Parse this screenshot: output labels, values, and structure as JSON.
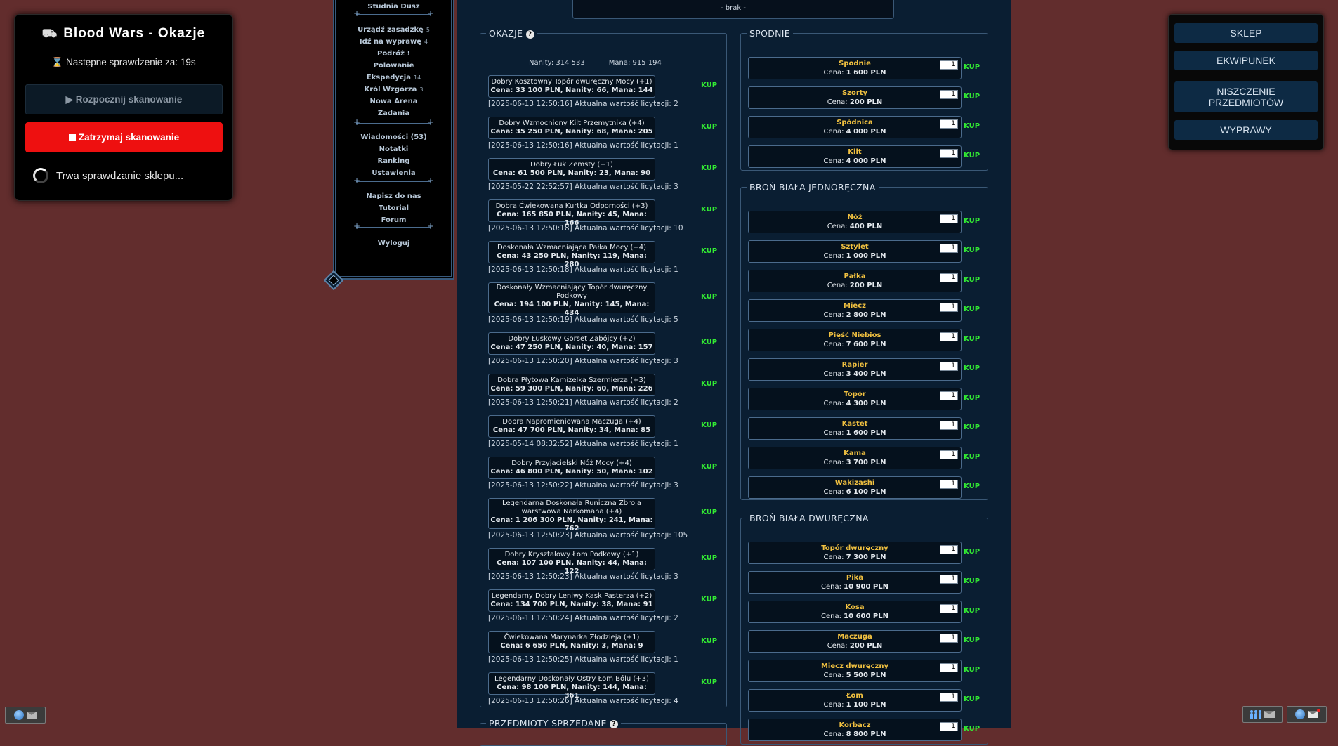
{
  "scanner": {
    "icon": "hand-cart-icon",
    "title": "Blood Wars - Okazje",
    "next_check": "⌛ Następne sprawdzenie za: 19s",
    "start_label": "▶ Rozpocznij skanowanie",
    "stop_label": "Zatrzymaj skanowanie",
    "status": "Trwa sprawdzanie sklepu..."
  },
  "menu": {
    "items": [
      {
        "label": "Studnia Dusz",
        "count": ""
      },
      {
        "label": "Urządź zasadzkę",
        "count": "5"
      },
      {
        "label": "Idź na wyprawę",
        "count": "4"
      },
      {
        "label": "Podróż !",
        "count": ""
      },
      {
        "label": "Polowanie",
        "count": ""
      },
      {
        "label": "Ekspedycja",
        "count": "14"
      },
      {
        "label": "Król Wzgórza",
        "count": "3"
      },
      {
        "label": "Nowa Arena",
        "count": ""
      },
      {
        "label": "Zadania",
        "count": ""
      },
      {
        "label": "Wiadomości (53)",
        "count": ""
      },
      {
        "label": "Notatki",
        "count": ""
      },
      {
        "label": "Ranking",
        "count": ""
      },
      {
        "label": "Ustawienia",
        "count": ""
      },
      {
        "label": "Napisz do nas",
        "count": ""
      },
      {
        "label": "Tutorial",
        "count": ""
      },
      {
        "label": "Forum",
        "count": ""
      },
      {
        "label": "Wyloguj",
        "count": ""
      }
    ]
  },
  "top_box": {
    "text": "- brak -"
  },
  "okazje": {
    "legend": "OKAZJE",
    "nanity": "Nanity: 314 533",
    "mana": "Mana: 915 194",
    "buy_label": "KUP",
    "offers": [
      {
        "name": "Dobry Kosztowny Topór dwuręczny Mocy (+1)",
        "price": "Cena: 33 100 PLN, Nanity: 66, Mana: 144",
        "time": "[2025-06-13 12:50:16] Aktualna wartość licytacji: 2"
      },
      {
        "name": "Dobry Wzmocniony Kilt Przemytnika (+4)",
        "price": "Cena: 35 250 PLN, Nanity: 68, Mana: 205",
        "time": "[2025-06-13 12:50:16] Aktualna wartość licytacji: 1"
      },
      {
        "name": "Dobry Łuk Zemsty (+1)",
        "price": "Cena: 61 500 PLN, Nanity: 23, Mana: 90",
        "time": "[2025-05-22 22:52:57] Aktualna wartość licytacji: 3"
      },
      {
        "name": "Dobra Ćwiekowana Kurtka Odporności (+3)",
        "price": "Cena: 165 850 PLN, Nanity: 45, Mana: 166",
        "time": "[2025-06-13 12:50:18] Aktualna wartość licytacji: 10"
      },
      {
        "name": "Doskonała Wzmacniająca Pałka Mocy (+4)",
        "price": "Cena: 43 250 PLN, Nanity: 119, Mana: 280",
        "time": "[2025-06-13 12:50:18] Aktualna wartość licytacji: 1"
      },
      {
        "name": "Doskonały Wzmacniający Topór dwuręczny Podkowy",
        "price": "Cena: 194 100 PLN, Nanity: 145, Mana: 434",
        "time": "[2025-06-13 12:50:19] Aktualna wartość licytacji: 5"
      },
      {
        "name": "Dobry Łuskowy Gorset Zabójcy (+2)",
        "price": "Cena: 47 250 PLN, Nanity: 40, Mana: 157",
        "time": "[2025-06-13 12:50:20] Aktualna wartość licytacji: 3"
      },
      {
        "name": "Dobra Płytowa Kamizelka Szermierza (+3)",
        "price": "Cena: 59 300 PLN, Nanity: 60, Mana: 226",
        "time": "[2025-06-13 12:50:21] Aktualna wartość licytacji: 2"
      },
      {
        "name": "Dobra Napromieniowana Maczuga (+4)",
        "price": "Cena: 47 700 PLN, Nanity: 34, Mana: 85",
        "time": "[2025-05-14 08:32:52] Aktualna wartość licytacji: 1"
      },
      {
        "name": "Dobry Przyjacielski Nóż Mocy (+4)",
        "price": "Cena: 46 800 PLN, Nanity: 50, Mana: 102",
        "time": "[2025-06-13 12:50:22] Aktualna wartość licytacji: 3"
      },
      {
        "name": "Legendarna Doskonała Runiczna Zbroja warstwowa Narkomana (+4)",
        "price": "Cena: 1 206 300 PLN, Nanity: 241, Mana: 762",
        "time": "[2025-06-13 12:50:23] Aktualna wartość licytacji: 105"
      },
      {
        "name": "Dobry Kryształowy Łom Podkowy (+1)",
        "price": "Cena: 107 100 PLN, Nanity: 44, Mana: 122",
        "time": "[2025-06-13 12:50:23] Aktualna wartość licytacji: 3"
      },
      {
        "name": "Legendarny Dobry Leniwy Kask Pasterza (+2)",
        "price": "Cena: 134 700 PLN, Nanity: 38, Mana: 91",
        "time": "[2025-06-13 12:50:24] Aktualna wartość licytacji: 2"
      },
      {
        "name": "Ćwiekowana Marynarka Złodzieja (+1)",
        "price": "Cena: 6 650 PLN, Nanity: 3, Mana: 9",
        "time": "[2025-06-13 12:50:25] Aktualna wartość licytacji: 1"
      },
      {
        "name": "Legendarny Doskonały Ostry Łom Bólu (+3)",
        "price": "Cena: 98 100 PLN, Nanity: 144, Mana: 361",
        "time": "[2025-06-13 12:50:26] Aktualna wartość licytacji: 4"
      }
    ]
  },
  "sold": {
    "legend": "PRZEDMIOTY SPRZEDANE"
  },
  "shop": {
    "qty_default": "1",
    "buy_label": "KUP",
    "spodnie": {
      "legend": "SPODNIE",
      "items": [
        {
          "name": "Spodnie",
          "price_label": "Cena:",
          "price": "1 600 PLN"
        },
        {
          "name": "Szorty",
          "price_label": "Cena:",
          "price": "200 PLN"
        },
        {
          "name": "Spódnica",
          "price_label": "Cena:",
          "price": "4 000 PLN"
        },
        {
          "name": "Kilt",
          "price_label": "Cena:",
          "price": "4 000 PLN"
        }
      ]
    },
    "bron1": {
      "legend": "BROŃ BIAŁA JEDNORĘCZNA",
      "items": [
        {
          "name": "Nóż",
          "price_label": "Cena:",
          "price": "400 PLN"
        },
        {
          "name": "Sztylet",
          "price_label": "Cena:",
          "price": "1 000 PLN"
        },
        {
          "name": "Pałka",
          "price_label": "Cena:",
          "price": "200 PLN"
        },
        {
          "name": "Miecz",
          "price_label": "Cena:",
          "price": "2 800 PLN"
        },
        {
          "name": "Pięść Niebios",
          "price_label": "Cena:",
          "price": "7 600 PLN"
        },
        {
          "name": "Rapier",
          "price_label": "Cena:",
          "price": "3 400 PLN"
        },
        {
          "name": "Topór",
          "price_label": "Cena:",
          "price": "4 300 PLN"
        },
        {
          "name": "Kastet",
          "price_label": "Cena:",
          "price": "1 600 PLN"
        },
        {
          "name": "Kama",
          "price_label": "Cena:",
          "price": "3 700 PLN"
        },
        {
          "name": "Wakizashi",
          "price_label": "Cena:",
          "price": "6 100 PLN"
        }
      ]
    },
    "bron2": {
      "legend": "BROŃ BIAŁA DWURĘCZNA",
      "items": [
        {
          "name": "Topór dwuręczny",
          "price_label": "Cena:",
          "price": "7 300 PLN"
        },
        {
          "name": "Pika",
          "price_label": "Cena:",
          "price": "10 900 PLN"
        },
        {
          "name": "Kosa",
          "price_label": "Cena:",
          "price": "10 600 PLN"
        },
        {
          "name": "Maczuga",
          "price_label": "Cena:",
          "price": "200 PLN"
        },
        {
          "name": "Miecz dwuręczny",
          "price_label": "Cena:",
          "price": "5 500 PLN"
        },
        {
          "name": "Łom",
          "price_label": "Cena:",
          "price": "1 100 PLN"
        },
        {
          "name": "Korbacz",
          "price_label": "Cena:",
          "price": "8 800 PLN"
        }
      ]
    }
  },
  "right_menu": {
    "buttons": [
      "SKLEP",
      "EKWIPUNEK",
      "NISZCZENIE PRZEDMIOTÓW",
      "WYPRAWY"
    ]
  },
  "colors": {
    "page_bg": "#622d2d",
    "panel_bg": "#0a1e32",
    "stop_red": "#ee1010",
    "kup_green": "#33ee33",
    "item_gold": "#f0c040"
  }
}
